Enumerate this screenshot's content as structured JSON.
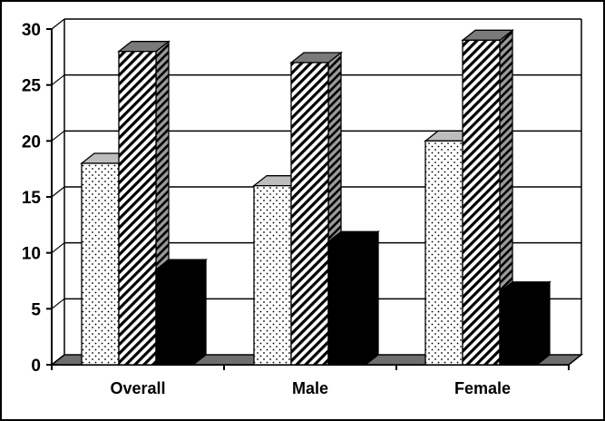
{
  "chart_data": {
    "type": "bar",
    "categories": [
      "Overall",
      "Male",
      "Female"
    ],
    "series": [
      {
        "values": [
          18,
          16,
          20
        ],
        "pattern": "dots",
        "color": "#ffffff"
      },
      {
        "values": [
          28,
          27,
          29
        ],
        "pattern": "diagonal-hatch",
        "color": "#ffffff"
      },
      {
        "values": [
          8.5,
          11,
          6.5
        ],
        "pattern": "solid",
        "color": "#000000"
      }
    ],
    "yticks": [
      0,
      5,
      10,
      15,
      20,
      25,
      30
    ],
    "ylim": [
      0,
      30
    ],
    "grid": true,
    "legend": "none",
    "style": "3d",
    "colors": {
      "floor": "#6e6e6e",
      "side_shade": "#7a7a7a",
      "grid": "#000000"
    }
  }
}
